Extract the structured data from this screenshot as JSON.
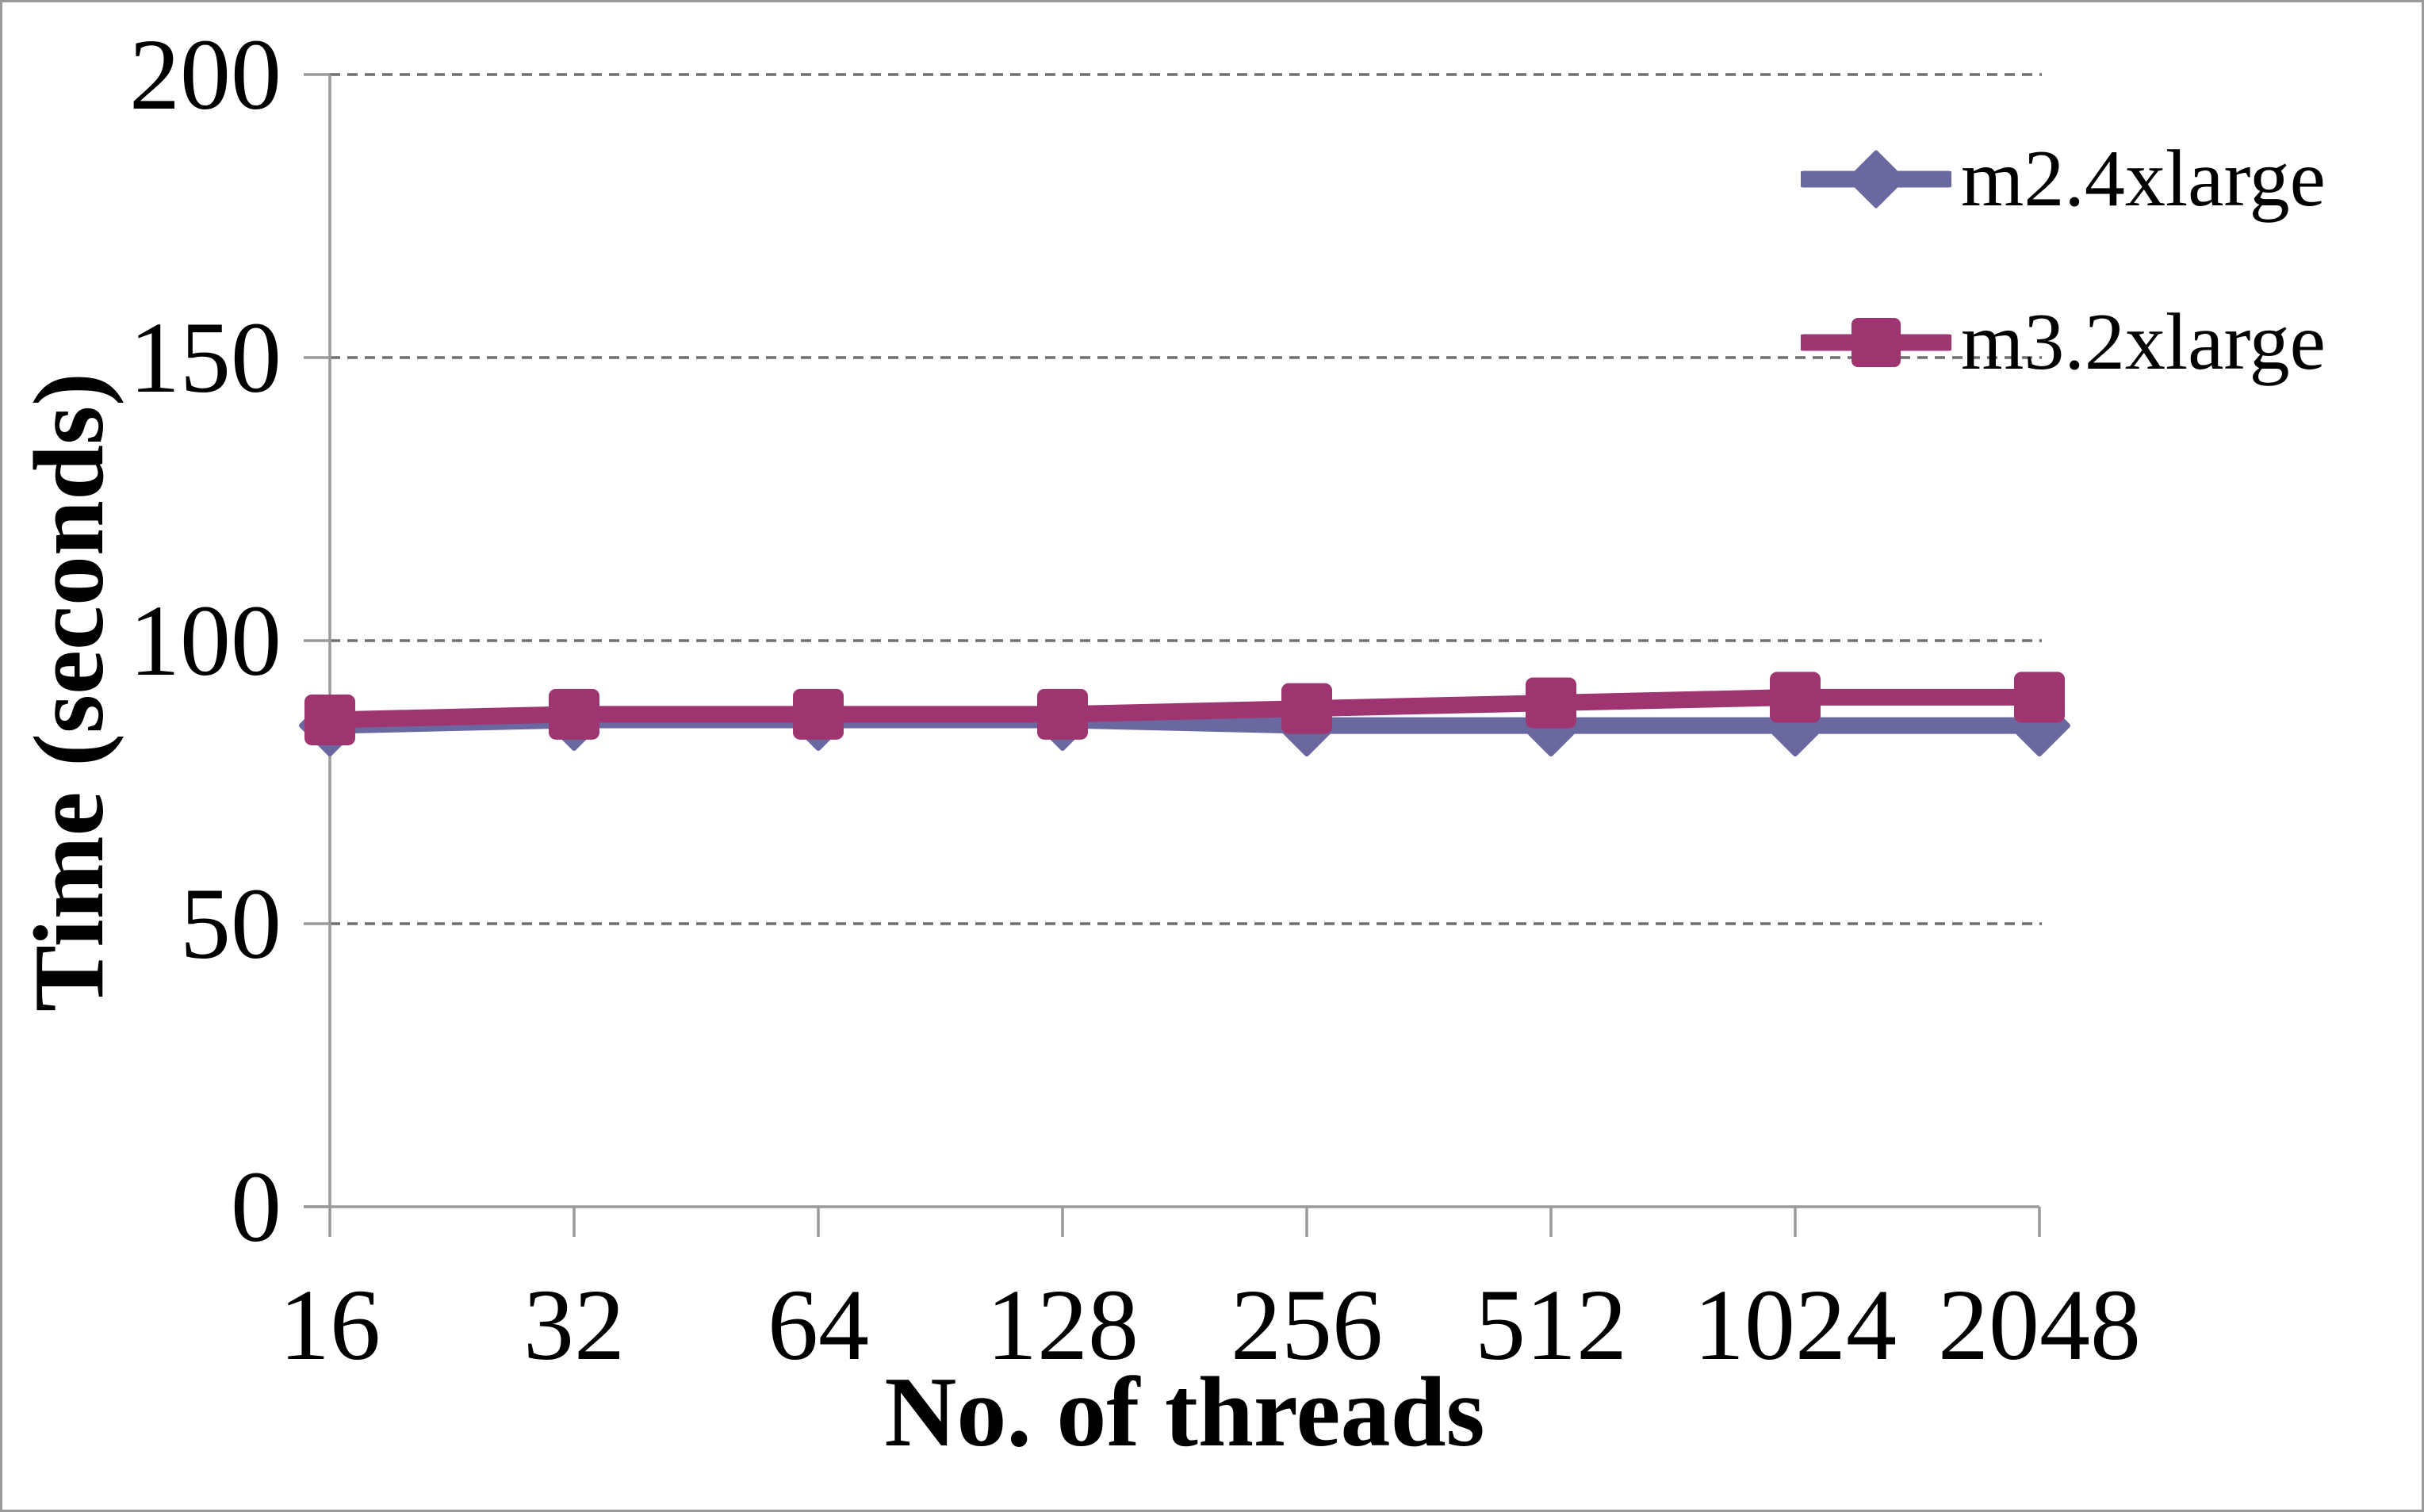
{
  "chart_data": {
    "type": "line",
    "title": "",
    "xlabel": "No. of threads",
    "ylabel": "Time (seconds)",
    "categories": [
      "16",
      "32",
      "64",
      "128",
      "256",
      "512",
      "1024",
      "2048"
    ],
    "series": [
      {
        "name": "m2.4xlarge",
        "values": [
          85,
          86,
          86,
          86,
          85,
          85,
          85,
          85
        ],
        "color": "#6a68a0",
        "marker": "diamond"
      },
      {
        "name": "m3.2xlarge",
        "values": [
          86,
          87,
          87,
          87,
          88,
          89,
          90,
          90
        ],
        "color": "#9e3570",
        "marker": "square"
      }
    ],
    "y_ticks": [
      0,
      50,
      100,
      150,
      200
    ],
    "ylim": [
      0,
      200
    ],
    "grid": "horizontal-dashed",
    "gridline_color": "#6f6f6f",
    "axis_color": "#9a9a9a",
    "legend_position": "right"
  }
}
